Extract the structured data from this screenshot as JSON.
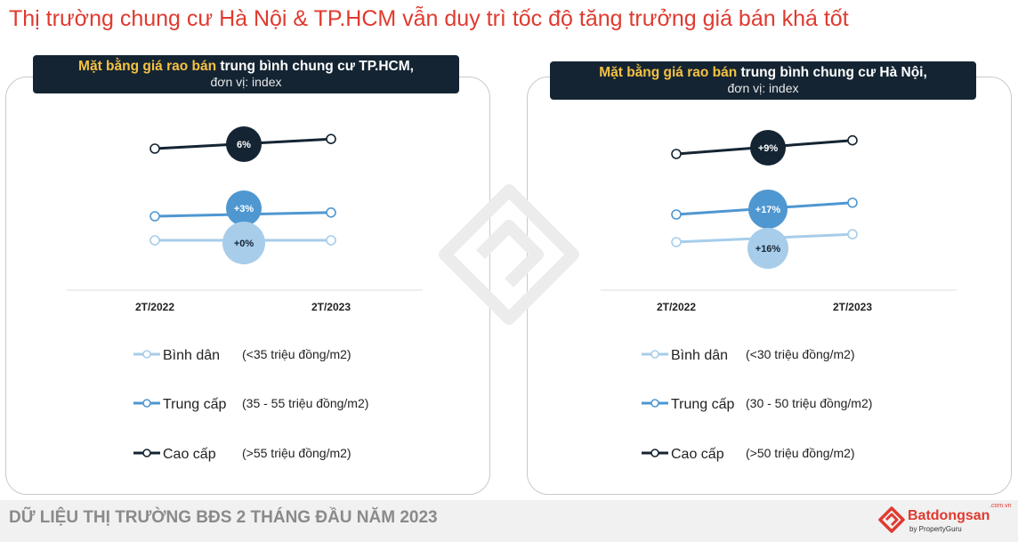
{
  "title": "Thị trường chung cư Hà Nội & TP.HCM vẫn duy trì tốc độ tăng trưởng giá bán khá tốt",
  "colors": {
    "title_red": "#e03a2f",
    "header_bg": "#142433",
    "highlight": "#f5c242",
    "cao_cap": "#142433",
    "trung_cap": "#4e97d1",
    "binh_dan": "#a7cdea"
  },
  "footer": {
    "text": "DỮ LIỆU THỊ TRƯỜNG BĐS 2 THÁNG ĐẦU NĂM 2023",
    "logo_name": "Batdongsan",
    "logo_sub": "by PropertyGuru",
    "logo_domain": ".com.vn"
  },
  "chart_data": [
    {
      "type": "line",
      "header_highlight": "Mặt bằng giá rao bán",
      "header_rest": " trung bình chung cư TP.HCM,",
      "header_unit": "đơn vị: index",
      "categories": [
        "2T/2022",
        "2T/2023"
      ],
      "series": [
        {
          "name": "Cao cấp",
          "range": "(>55 triệu đồng/m2)",
          "change_label": "6%",
          "values": [
            100,
            106
          ]
        },
        {
          "name": "Trung cấp",
          "range": "(35 - 55 triệu đồng/m2)",
          "change_label": "+3%",
          "values": [
            100,
            103
          ]
        },
        {
          "name": "Bình dân",
          "range": "(<35 triệu đồng/m2)",
          "change_label": "+0%",
          "values": [
            100,
            100
          ]
        }
      ]
    },
    {
      "type": "line",
      "header_highlight": "Mặt bằng giá rao bán",
      "header_rest": " trung bình chung cư Hà Nội,",
      "header_unit": "đơn vị: index",
      "categories": [
        "2T/2022",
        "2T/2023"
      ],
      "series": [
        {
          "name": "Cao cấp",
          "range": "(>50 triệu đồng/m2)",
          "change_label": "+9%",
          "values": [
            100,
            109
          ]
        },
        {
          "name": "Trung cấp",
          "range": "(30 - 50 triệu đồng/m2)",
          "change_label": "+17%",
          "values": [
            100,
            117
          ]
        },
        {
          "name": "Bình dân",
          "range": "(<30 triệu đồng/m2)",
          "change_label": "+16%",
          "values": [
            100,
            116
          ]
        }
      ]
    }
  ]
}
